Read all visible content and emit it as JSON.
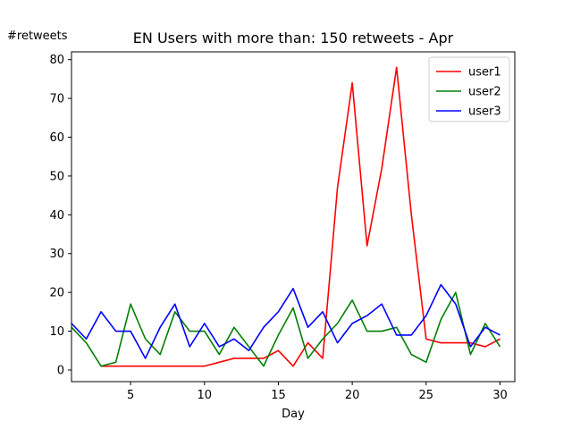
{
  "chart_data": {
    "type": "line",
    "title": "EN Users with more than: 150 retweets - Apr",
    "xlabel": "Day",
    "ylabel": "#retweets",
    "xlim": [
      1,
      31
    ],
    "ylim": [
      -3,
      82
    ],
    "xticks": [
      5,
      10,
      15,
      20,
      25,
      30
    ],
    "yticks": [
      0,
      10,
      20,
      30,
      40,
      50,
      60,
      70,
      80
    ],
    "grid": false,
    "legend_position": "top-right",
    "series": [
      {
        "name": "user1",
        "color": "#ff0000",
        "x": [
          3,
          4,
          5,
          6,
          7,
          8,
          9,
          10,
          11,
          12,
          13,
          14,
          15,
          16,
          17,
          18,
          19,
          20,
          21,
          22,
          23,
          24,
          25,
          26,
          27,
          28,
          29,
          30
        ],
        "values": [
          1,
          1,
          1,
          1,
          1,
          1,
          1,
          1,
          2,
          3,
          3,
          3,
          5,
          1,
          7,
          3,
          47,
          74,
          32,
          52,
          78,
          40,
          8,
          7,
          7,
          7,
          6,
          8
        ]
      },
      {
        "name": "user2",
        "color": "#008000",
        "x": [
          1,
          2,
          3,
          4,
          5,
          6,
          7,
          8,
          9,
          10,
          11,
          12,
          13,
          14,
          15,
          16,
          17,
          18,
          19,
          20,
          21,
          22,
          23,
          24,
          25,
          26,
          27,
          28,
          29,
          30
        ],
        "values": [
          11,
          7,
          1,
          2,
          17,
          8,
          4,
          15,
          10,
          10,
          4,
          11,
          6,
          1,
          9,
          16,
          3,
          8,
          12,
          18,
          10,
          10,
          11,
          4,
          2,
          13,
          20,
          4,
          12,
          6
        ]
      },
      {
        "name": "user3",
        "color": "#0000ff",
        "x": [
          1,
          2,
          3,
          4,
          5,
          6,
          7,
          8,
          9,
          10,
          11,
          12,
          13,
          14,
          15,
          16,
          17,
          18,
          19,
          20,
          21,
          22,
          23,
          24,
          25,
          26,
          27,
          28,
          29,
          30
        ],
        "values": [
          12,
          8,
          15,
          10,
          10,
          3,
          11,
          17,
          6,
          12,
          6,
          8,
          5,
          11,
          15,
          21,
          11,
          15,
          7,
          12,
          14,
          17,
          9,
          9,
          14,
          22,
          17,
          6,
          11,
          9
        ]
      }
    ]
  }
}
